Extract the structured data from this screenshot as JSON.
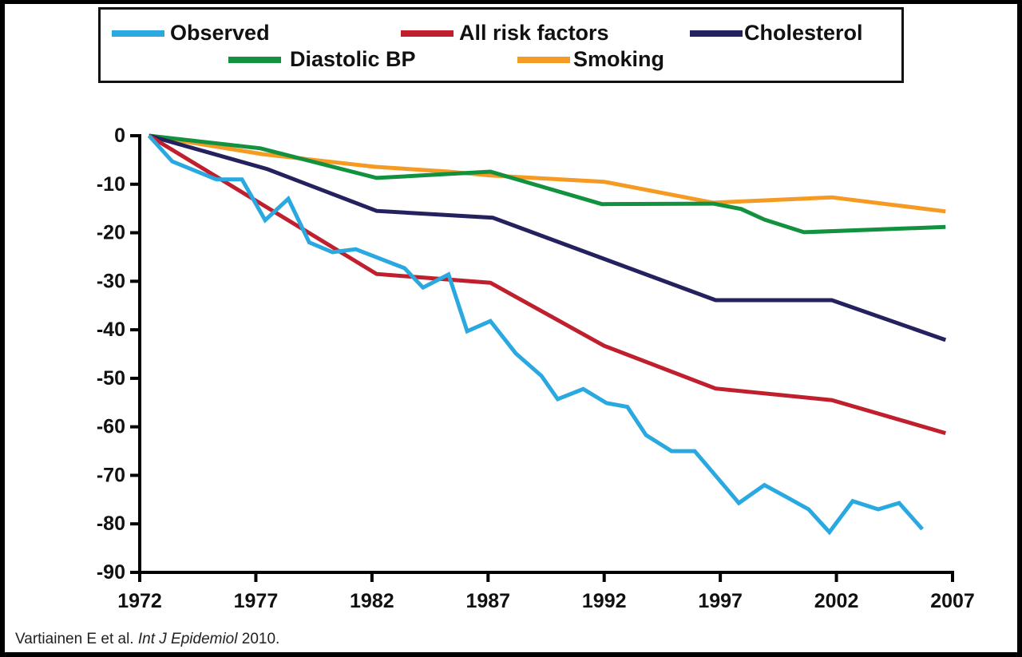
{
  "chart_data": {
    "type": "line",
    "title": "",
    "xlabel": "",
    "ylabel": "",
    "xlim": [
      1972,
      2007
    ],
    "ylim": [
      -90,
      0
    ],
    "x_ticks": [
      1972,
      1977,
      1982,
      1987,
      1992,
      1997,
      2002,
      2007
    ],
    "y_ticks": [
      0,
      -10,
      -20,
      -30,
      -40,
      -50,
      -60,
      -70,
      -80,
      -90
    ],
    "grid": false,
    "legend_position": "top",
    "series": [
      {
        "name": "Observed",
        "color": "#2aa9e0",
        "points": [
          [
            1972.4,
            0
          ],
          [
            1973.4,
            -5.3
          ],
          [
            1975.3,
            -9
          ],
          [
            1976.4,
            -9
          ],
          [
            1977.4,
            -17.4
          ],
          [
            1978.4,
            -13
          ],
          [
            1979.3,
            -22
          ],
          [
            1980.3,
            -24
          ],
          [
            1981.3,
            -23.4
          ],
          [
            1983.4,
            -27.3
          ],
          [
            1984.2,
            -31.3
          ],
          [
            1985.3,
            -28.6
          ],
          [
            1986.1,
            -40.3
          ],
          [
            1987.1,
            -38.2
          ],
          [
            1988.2,
            -44.9
          ],
          [
            1989.3,
            -49.5
          ],
          [
            1990.0,
            -54.3
          ],
          [
            1991.1,
            -52.2
          ],
          [
            1992.1,
            -55.1
          ],
          [
            1993.0,
            -55.9
          ],
          [
            1993.8,
            -61.7
          ],
          [
            1994.9,
            -65
          ],
          [
            1995.9,
            -65
          ],
          [
            1997.8,
            -75.7
          ],
          [
            1998.9,
            -72
          ],
          [
            1999.9,
            -74.6
          ],
          [
            2000.8,
            -77
          ],
          [
            2001.7,
            -81.7
          ],
          [
            2002.7,
            -75.3
          ],
          [
            2003.8,
            -77
          ],
          [
            2004.7,
            -75.7
          ],
          [
            2005.7,
            -81.1
          ]
        ]
      },
      {
        "name": "All risk factors",
        "color": "#c0202e",
        "points": [
          [
            1972.4,
            0
          ],
          [
            1982.2,
            -28.5
          ],
          [
            1987.1,
            -30.3
          ],
          [
            1992.0,
            -43.3
          ],
          [
            1996.8,
            -52.1
          ],
          [
            2001.8,
            -54.5
          ],
          [
            2006.7,
            -61.3
          ]
        ]
      },
      {
        "name": "Cholesterol",
        "color": "#23215e",
        "points": [
          [
            1972.4,
            0
          ],
          [
            1977.5,
            -6.9
          ],
          [
            1982.2,
            -15.5
          ],
          [
            1987.2,
            -16.9
          ],
          [
            1996.8,
            -33.9
          ],
          [
            2001.8,
            -33.9
          ],
          [
            2006.7,
            -42.1
          ]
        ]
      },
      {
        "name": "Diastolic BP",
        "color": "#12923f",
        "points": [
          [
            1972.4,
            0
          ],
          [
            1977.2,
            -2.6
          ],
          [
            1982.2,
            -8.7
          ],
          [
            1987.1,
            -7.4
          ],
          [
            1991.9,
            -14.1
          ],
          [
            1996.7,
            -14.0
          ],
          [
            1997.9,
            -15.1
          ],
          [
            1998.9,
            -17.3
          ],
          [
            2000.6,
            -19.9
          ],
          [
            2006.7,
            -18.8
          ]
        ]
      },
      {
        "name": "Smoking",
        "color": "#f59a23",
        "points": [
          [
            1972.4,
            0
          ],
          [
            1977.3,
            -3.8
          ],
          [
            1982.1,
            -6.4
          ],
          [
            1985.3,
            -7.4
          ],
          [
            1987.1,
            -8.2
          ],
          [
            1992.0,
            -9.5
          ],
          [
            1996.7,
            -13.8
          ],
          [
            2001.8,
            -12.7
          ],
          [
            2006.7,
            -15.6
          ]
        ]
      }
    ]
  },
  "legend": {
    "items": [
      {
        "label": "Observed",
        "color": "#2aa9e0"
      },
      {
        "label": "All risk factors",
        "color": "#c0202e"
      },
      {
        "label": "Cholesterol",
        "color": "#23215e"
      },
      {
        "label": "Diastolic BP",
        "color": "#12923f"
      },
      {
        "label": "Smoking",
        "color": "#f59a23"
      }
    ]
  },
  "citation": {
    "authors": "Vartiainen E et al. ",
    "journal": "Int J Epidemiol",
    "year": " 2010."
  }
}
